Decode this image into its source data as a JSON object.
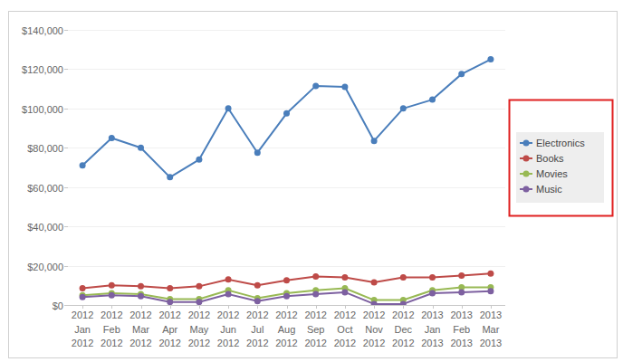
{
  "chart_data": {
    "type": "line",
    "categories": [
      "2012 Jan 2012",
      "2012 Feb 2012",
      "2012 Mar 2012",
      "2012 Apr 2012",
      "2012 May 2012",
      "2012 Jun 2012",
      "2012 Jul 2012",
      "2012 Aug 2012",
      "2012 Sep 2012",
      "2012 Oct 2012",
      "2012 Nov 2012",
      "2012 Dec 2012",
      "2013 Jan 2013",
      "2013 Feb 2013",
      "2013 Mar 2013"
    ],
    "series": [
      {
        "name": "Electronics",
        "color": "#4a7ebb",
        "values": [
          71000,
          85000,
          80000,
          65000,
          74000,
          100000,
          77500,
          97500,
          111500,
          111000,
          83500,
          100000,
          104500,
          117500,
          125000
        ]
      },
      {
        "name": "Books",
        "color": "#be4b48",
        "values": [
          8500,
          10000,
          9500,
          8500,
          9500,
          13000,
          10000,
          12500,
          14500,
          14000,
          11500,
          14000,
          14000,
          15000,
          16000
        ]
      },
      {
        "name": "Movies",
        "color": "#98b954",
        "values": [
          5000,
          6000,
          5500,
          3000,
          3000,
          7500,
          3500,
          6000,
          7500,
          8500,
          2500,
          2500,
          7500,
          9000,
          9000
        ]
      },
      {
        "name": "Music",
        "color": "#7d60a0",
        "values": [
          4000,
          5000,
          4500,
          1500,
          1500,
          5500,
          2000,
          4500,
          5500,
          6500,
          500,
          500,
          6000,
          6500,
          7000
        ]
      }
    ],
    "ylim": [
      0,
      140000
    ],
    "yticks": [
      {
        "value": 0,
        "label": "$0"
      },
      {
        "value": 20000,
        "label": "$20,000"
      },
      {
        "value": 40000,
        "label": "$40,000"
      },
      {
        "value": 60000,
        "label": "$60,000"
      },
      {
        "value": 80000,
        "label": "$80,000"
      },
      {
        "value": 100000,
        "label": "$100,000"
      },
      {
        "value": 120000,
        "label": "$120,000"
      },
      {
        "value": 140000,
        "label": "$140,000"
      }
    ],
    "grid": true,
    "legend": "right",
    "marker": "circle"
  }
}
